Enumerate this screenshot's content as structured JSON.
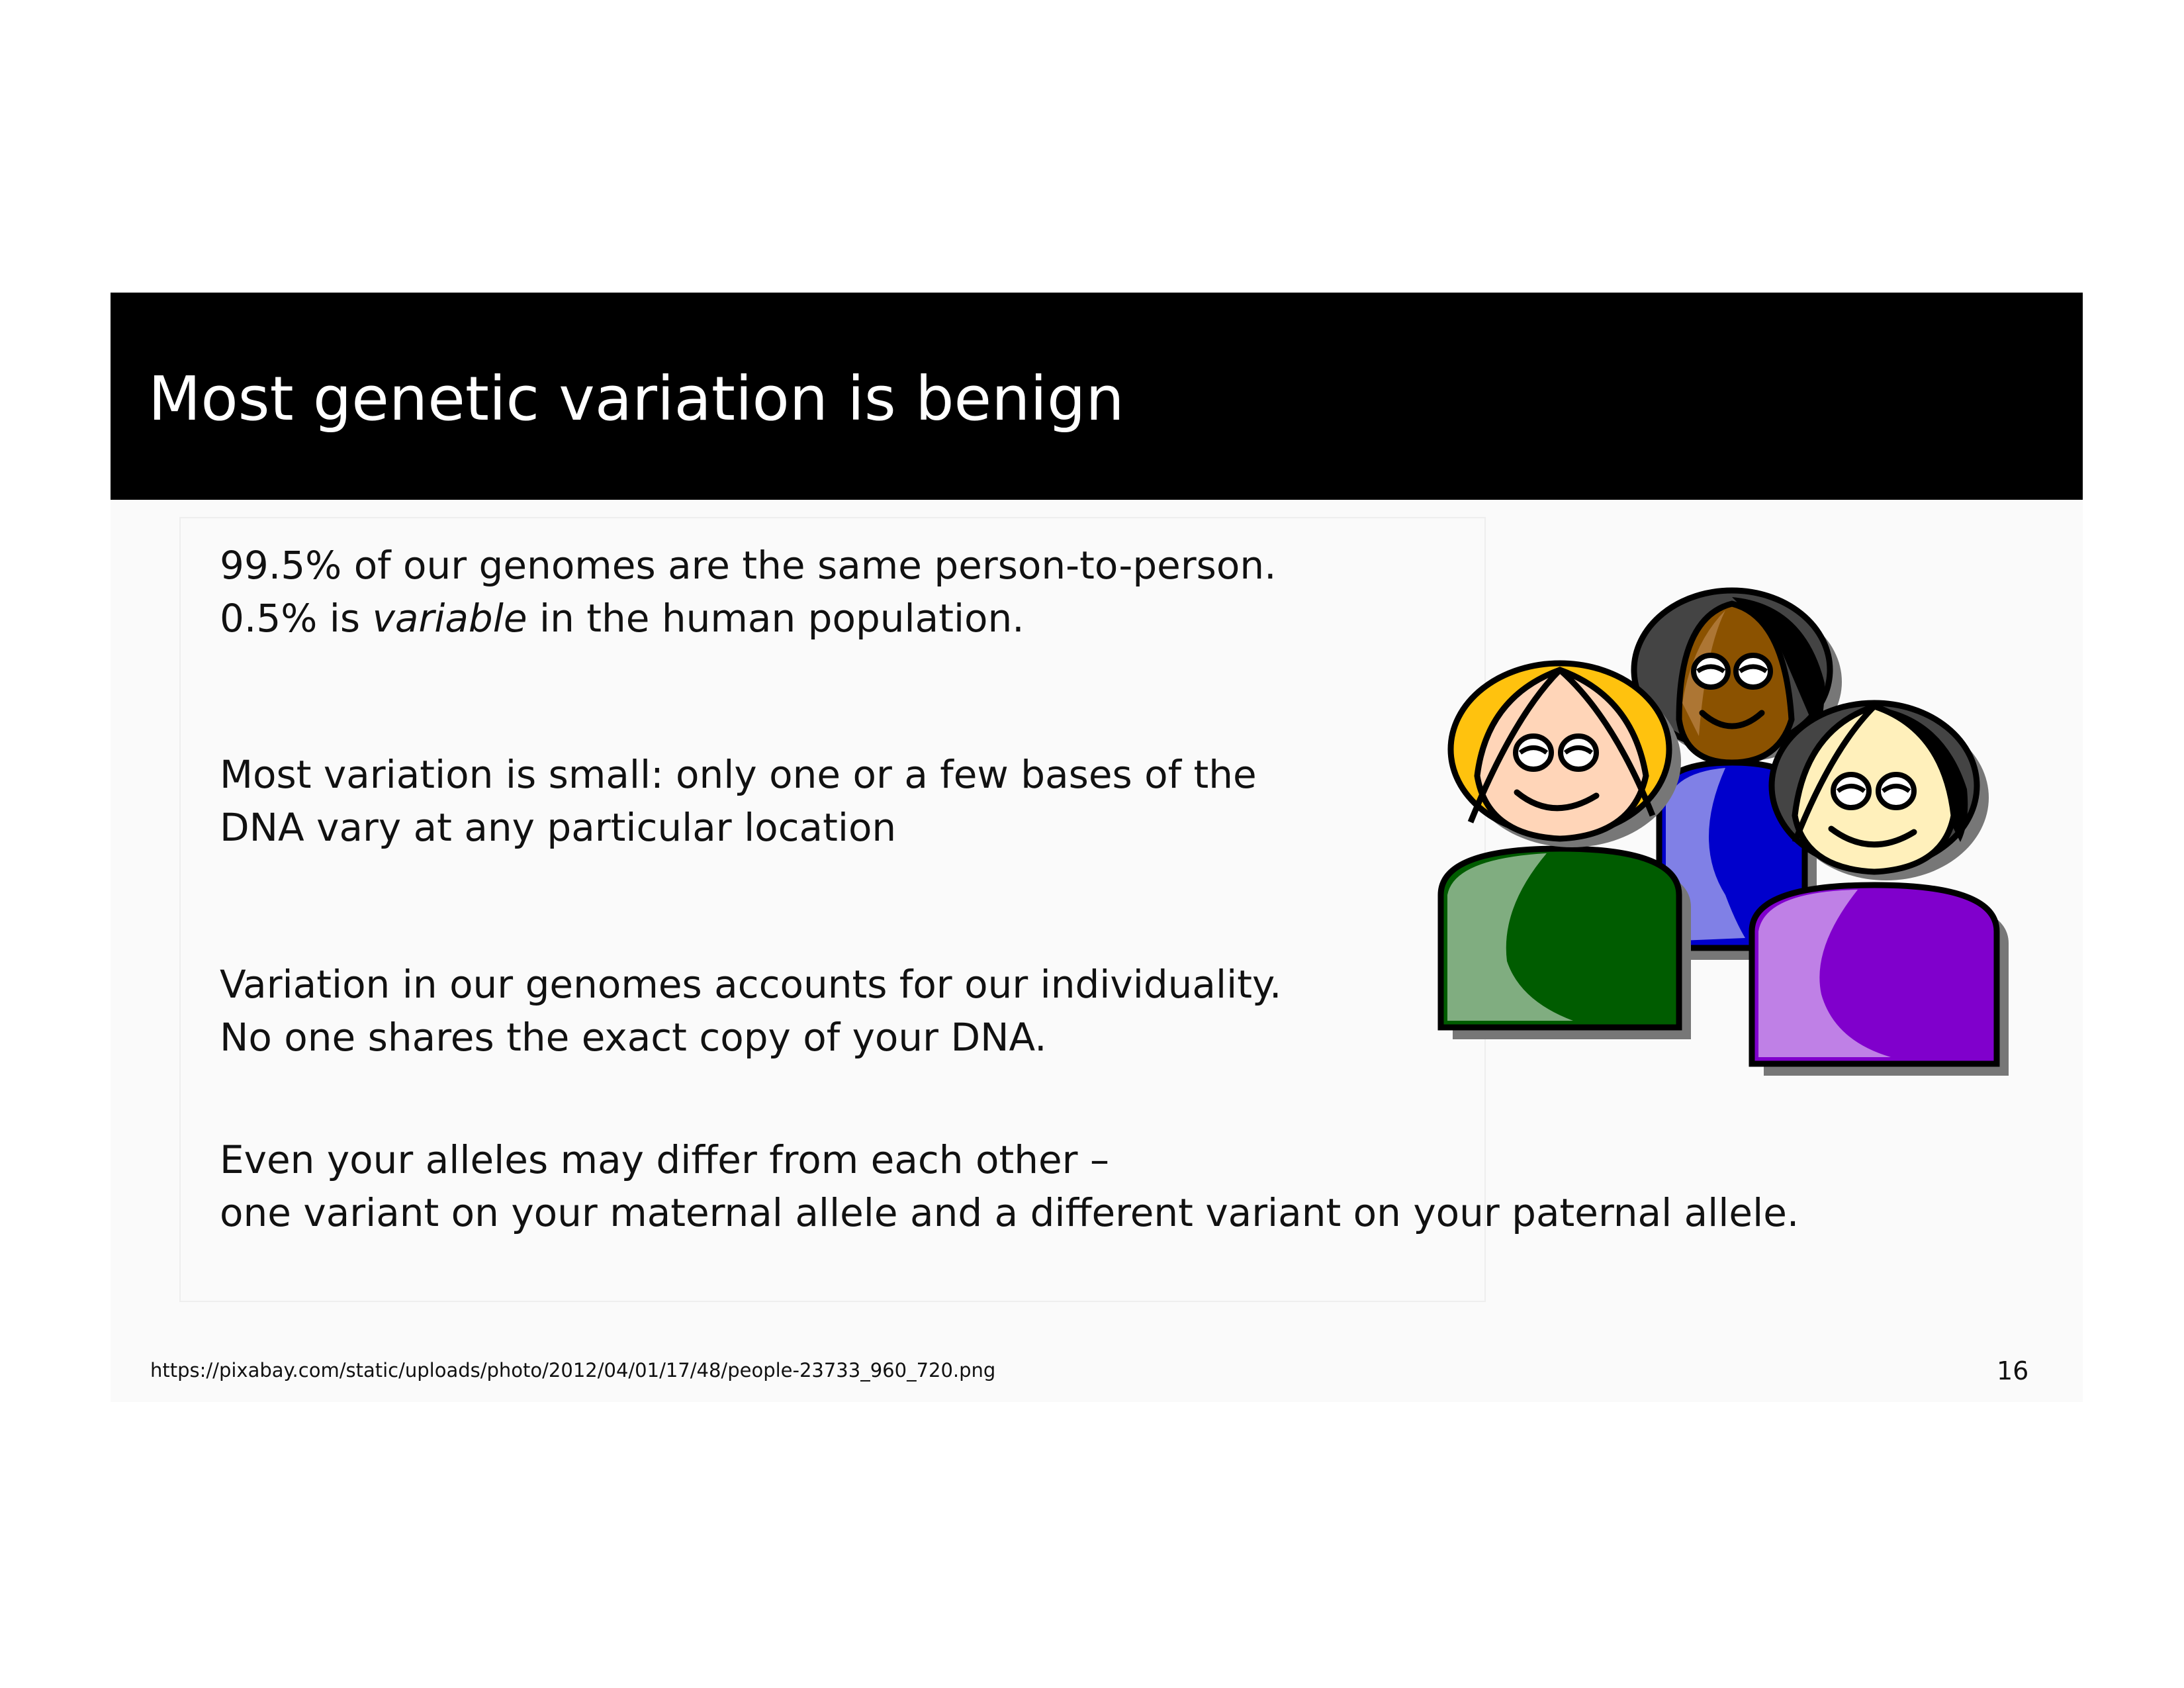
{
  "slide": {
    "title": "Most genetic variation is benign",
    "paragraphs": [
      {
        "line1": "99.5% of our genomes are the same person-to-person.",
        "line2_pre": "0.5% is ",
        "line2_em": "variable",
        "line2_post": " in the human population."
      },
      {
        "line1": "Most variation is small:  only one or a few bases of the",
        "line2": "DNA vary at any particular location"
      },
      {
        "line1": "Variation in our genomes accounts for our individuality.",
        "line2": "No one shares the exact copy of your DNA."
      },
      {
        "line1": "Even your alleles may differ from each other –",
        "line2": "one variant on your maternal allele and a different variant on your paternal allele."
      }
    ],
    "source_url": "https://pixabay.com/static/uploads/photo/2012/04/01/17/48/people-23733_960_720.png",
    "page_number": "16"
  },
  "illustration": {
    "icon": "people-group-icon",
    "colors": {
      "green_body": "#005c00",
      "blue_body": "#0000cc",
      "purple_body": "#8000cc",
      "blonde_hair": "#ffc20e",
      "dark_hair": "#444444",
      "light_skin": "#ffd5b8",
      "dark_skin": "#8b5200",
      "pale_skin": "#fff0bb"
    }
  }
}
